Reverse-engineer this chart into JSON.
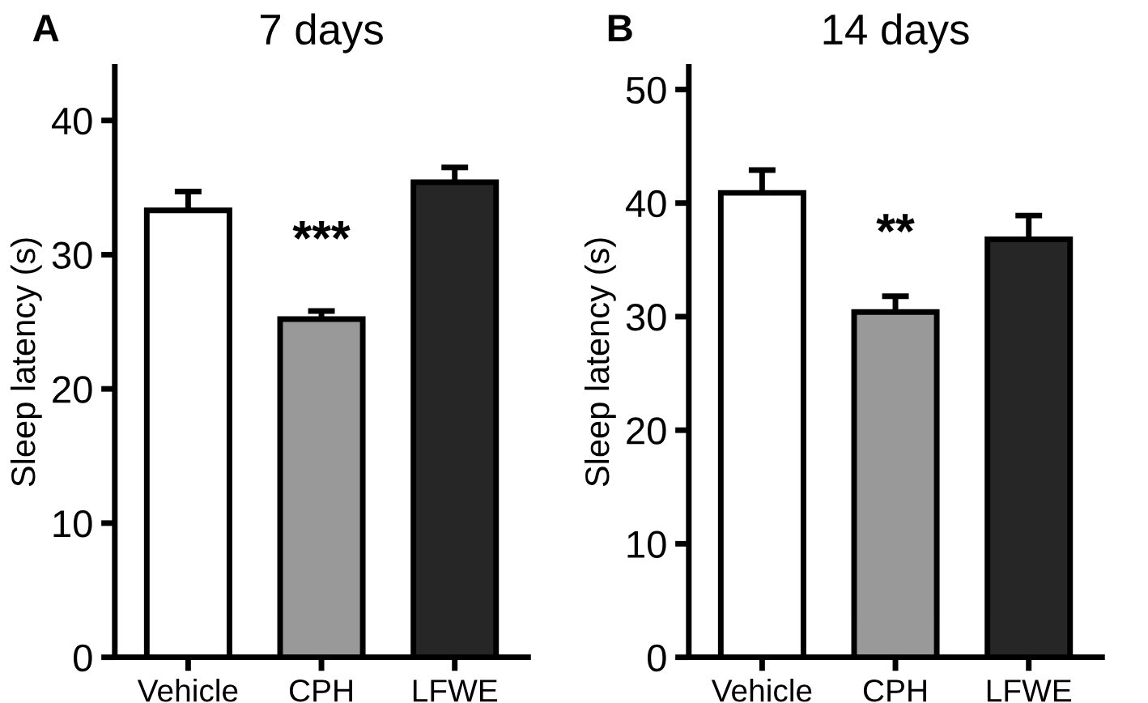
{
  "chart_data": [
    {
      "type": "bar",
      "title": "7 days",
      "ylabel": "Sleep latency (s)",
      "categories": [
        "Vehicle",
        "CPH",
        "LFWE"
      ],
      "values": [
        33.3,
        25.2,
        35.4
      ],
      "colors": [
        "#ffffff",
        "#999999",
        "#262626"
      ],
      "errors": [
        [
          33.3,
          34.7
        ],
        [
          25.2,
          25.8
        ],
        [
          35.4,
          36.5
        ]
      ],
      "ylim": [
        0,
        44
      ],
      "yticks": [
        0,
        10,
        20,
        30,
        40
      ],
      "grid": false,
      "annotations": [
        "A",
        "***"
      ]
    },
    {
      "type": "bar",
      "title": "14 days",
      "ylabel": "Sleep latency (s)",
      "categories": [
        "Vehicle",
        "CPH",
        "LFWE"
      ],
      "values": [
        40.9,
        30.4,
        36.8
      ],
      "colors": [
        "#ffffff",
        "#999999",
        "#262626"
      ],
      "errors": [
        [
          40.9,
          42.9
        ],
        [
          30.4,
          31.8
        ],
        [
          36.8,
          38.9
        ]
      ],
      "ylim": [
        0,
        52
      ],
      "yticks": [
        0,
        10,
        20,
        30,
        40,
        50
      ],
      "grid": false,
      "annotations": [
        "B",
        "**"
      ]
    }
  ]
}
